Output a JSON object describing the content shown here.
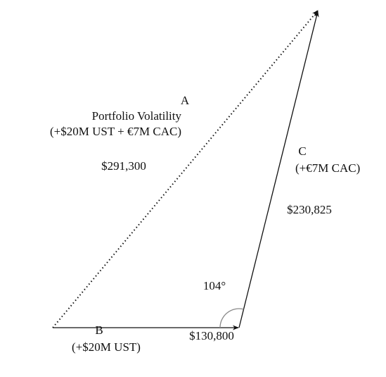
{
  "vectors": {
    "A": {
      "label": "A",
      "title": "Portfolio Volatility",
      "composition": "(+$20M UST + €7M CAC)",
      "value": "$291,300"
    },
    "B": {
      "label": "B",
      "composition": "(+$20M UST)",
      "value": "$130,800"
    },
    "C": {
      "label": "C",
      "composition": "(+€7M CAC)",
      "value": "$230,825"
    }
  },
  "angle": "104°"
}
